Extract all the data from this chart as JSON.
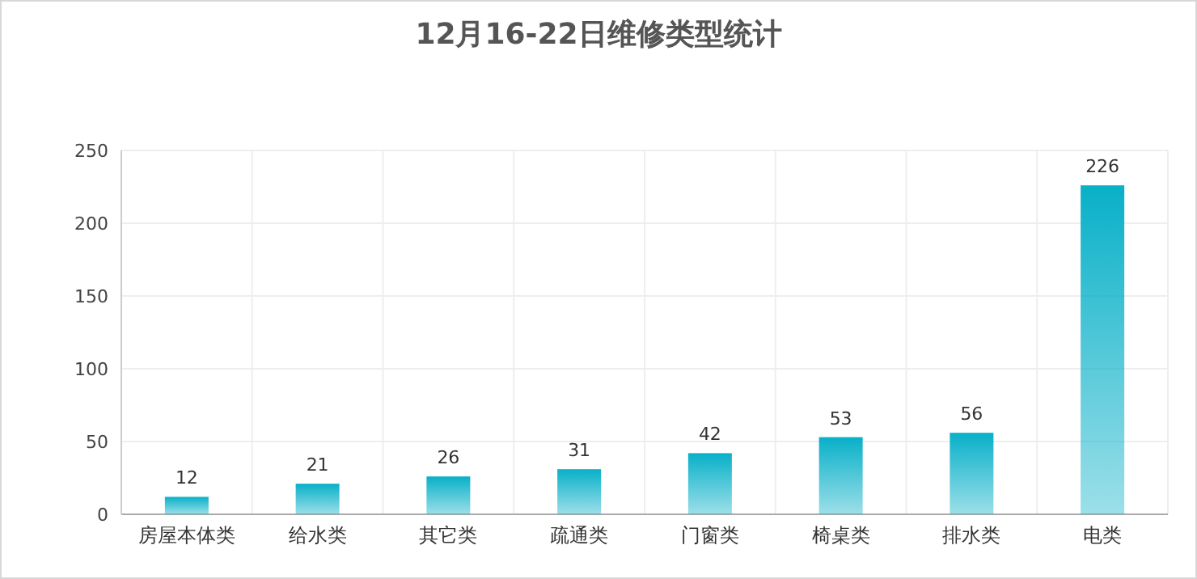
{
  "chart_data": {
    "type": "bar",
    "title": "12月16-22日维修类型统计",
    "categories": [
      "房屋本体类",
      "给水类",
      "其它类",
      "疏通类",
      "门窗类",
      "椅桌类",
      "排水类",
      "电类"
    ],
    "values": [
      12,
      21,
      26,
      31,
      42,
      53,
      56,
      226
    ],
    "color": "#08b0c8",
    "ylim": [
      0,
      250
    ],
    "yticks": [
      0,
      50,
      100,
      150,
      200,
      250
    ],
    "grid": true,
    "data_labels": true
  }
}
